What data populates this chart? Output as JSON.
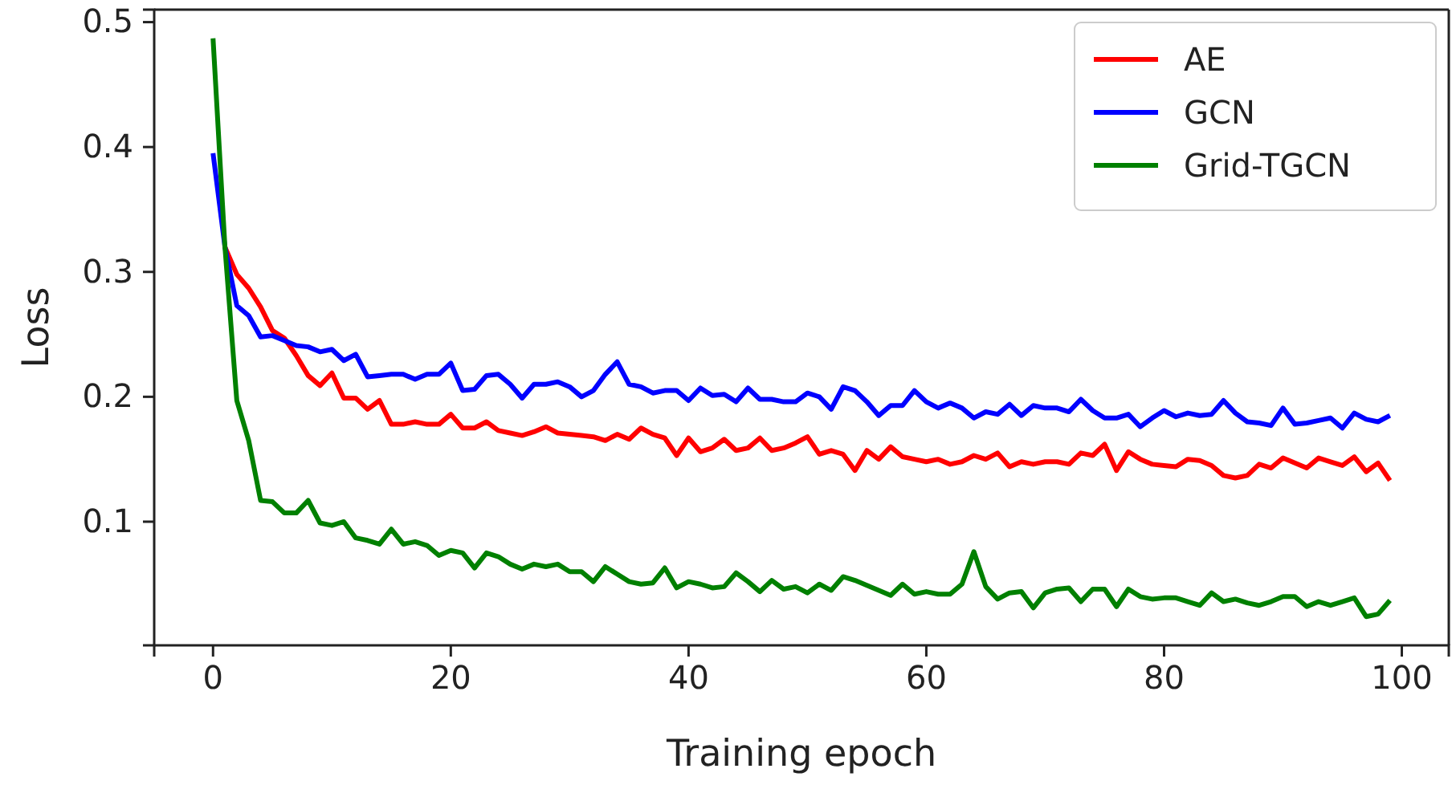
{
  "chart_data": {
    "type": "line",
    "xlabel": "Training epoch",
    "ylabel": "Loss",
    "x": [
      0,
      1,
      2,
      3,
      4,
      5,
      6,
      7,
      8,
      9,
      10,
      11,
      12,
      13,
      14,
      15,
      16,
      17,
      18,
      19,
      20,
      21,
      22,
      23,
      24,
      25,
      26,
      27,
      28,
      29,
      30,
      31,
      32,
      33,
      34,
      35,
      36,
      37,
      38,
      39,
      40,
      41,
      42,
      43,
      44,
      45,
      46,
      47,
      48,
      49,
      50,
      51,
      52,
      53,
      54,
      55,
      56,
      57,
      58,
      59,
      60,
      61,
      62,
      63,
      64,
      65,
      66,
      67,
      68,
      69,
      70,
      71,
      72,
      73,
      74,
      75,
      76,
      77,
      78,
      79,
      80,
      81,
      82,
      83,
      84,
      85,
      86,
      87,
      88,
      89,
      90,
      91,
      92,
      93,
      94,
      95,
      96,
      97,
      98,
      99
    ],
    "xlim": [
      -4.95,
      103.95
    ],
    "xticks": [
      0,
      20,
      40,
      60,
      80,
      100
    ],
    "ylim": [
      0.001,
      0.51
    ],
    "yticks": [
      0.1,
      0.2,
      0.3,
      0.4,
      0.5
    ],
    "grid": false,
    "legend": "top right",
    "line_style": "solid",
    "marker": "none",
    "series": [
      {
        "name": "AE",
        "color": "#ff0000",
        "values": [
          null,
          0.32,
          0.298,
          0.287,
          0.272,
          0.253,
          0.247,
          0.233,
          0.217,
          0.209,
          0.219,
          0.199,
          0.199,
          0.19,
          0.197,
          0.178,
          0.178,
          0.18,
          0.178,
          0.178,
          0.186,
          0.175,
          0.175,
          0.18,
          0.173,
          0.171,
          0.169,
          0.172,
          0.176,
          0.171,
          0.17,
          0.169,
          0.168,
          0.165,
          0.17,
          0.166,
          0.175,
          0.17,
          0.167,
          0.153,
          0.167,
          0.156,
          0.159,
          0.166,
          0.157,
          0.159,
          0.167,
          0.157,
          0.159,
          0.163,
          0.168,
          0.154,
          0.157,
          0.154,
          0.141,
          0.157,
          0.15,
          0.16,
          0.152,
          0.15,
          0.148,
          0.15,
          0.146,
          0.148,
          0.153,
          0.15,
          0.155,
          0.144,
          0.148,
          0.146,
          0.148,
          0.148,
          0.146,
          0.155,
          0.153,
          0.162,
          0.141,
          0.156,
          0.15,
          0.146,
          0.145,
          0.144,
          0.15,
          0.149,
          0.145,
          0.137,
          0.135,
          0.137,
          0.146,
          0.143,
          0.151,
          0.147,
          0.143,
          0.151,
          0.148,
          0.145,
          0.152,
          0.14,
          0.147,
          0.133
        ]
      },
      {
        "name": "GCN",
        "color": "#0000ff",
        "values": [
          0.395,
          0.32,
          0.273,
          0.265,
          0.248,
          0.249,
          0.245,
          0.241,
          0.24,
          0.236,
          0.238,
          0.229,
          0.234,
          0.216,
          0.217,
          0.218,
          0.218,
          0.214,
          0.218,
          0.218,
          0.227,
          0.205,
          0.206,
          0.217,
          0.218,
          0.21,
          0.199,
          0.21,
          0.21,
          0.212,
          0.208,
          0.2,
          0.205,
          0.218,
          0.228,
          0.21,
          0.208,
          0.203,
          0.205,
          0.205,
          0.197,
          0.207,
          0.201,
          0.202,
          0.196,
          0.207,
          0.198,
          0.198,
          0.196,
          0.196,
          0.203,
          0.2,
          0.19,
          0.208,
          0.205,
          0.196,
          0.185,
          0.193,
          0.193,
          0.205,
          0.196,
          0.191,
          0.195,
          0.191,
          0.183,
          0.188,
          0.186,
          0.194,
          0.185,
          0.193,
          0.191,
          0.191,
          0.188,
          0.198,
          0.189,
          0.183,
          0.183,
          0.186,
          0.176,
          0.183,
          0.189,
          0.184,
          0.187,
          0.185,
          0.186,
          0.197,
          0.187,
          0.18,
          0.179,
          0.177,
          0.191,
          0.178,
          0.179,
          0.181,
          0.183,
          0.175,
          0.187,
          0.182,
          0.18,
          0.185
        ]
      },
      {
        "name": "Grid-TGCN",
        "color": "#008000",
        "values": [
          0.487,
          0.32,
          0.197,
          0.165,
          0.117,
          0.116,
          0.107,
          0.107,
          0.117,
          0.099,
          0.097,
          0.1,
          0.087,
          0.085,
          0.082,
          0.094,
          0.082,
          0.084,
          0.081,
          0.073,
          0.077,
          0.075,
          0.063,
          0.075,
          0.072,
          0.066,
          0.062,
          0.066,
          0.064,
          0.066,
          0.06,
          0.06,
          0.052,
          0.064,
          0.058,
          0.052,
          0.05,
          0.051,
          0.063,
          0.047,
          0.052,
          0.05,
          0.047,
          0.048,
          0.059,
          0.052,
          0.044,
          0.053,
          0.046,
          0.048,
          0.043,
          0.05,
          0.045,
          0.056,
          0.053,
          0.049,
          0.045,
          0.041,
          0.05,
          0.042,
          0.044,
          0.042,
          0.042,
          0.05,
          0.076,
          0.048,
          0.038,
          0.043,
          0.044,
          0.031,
          0.043,
          0.046,
          0.047,
          0.036,
          0.046,
          0.046,
          0.032,
          0.046,
          0.04,
          0.038,
          0.039,
          0.039,
          0.036,
          0.033,
          0.043,
          0.036,
          0.038,
          0.035,
          0.033,
          0.036,
          0.04,
          0.04,
          0.032,
          0.036,
          0.033,
          0.036,
          0.039,
          0.024,
          0.026,
          0.037
        ]
      }
    ]
  }
}
